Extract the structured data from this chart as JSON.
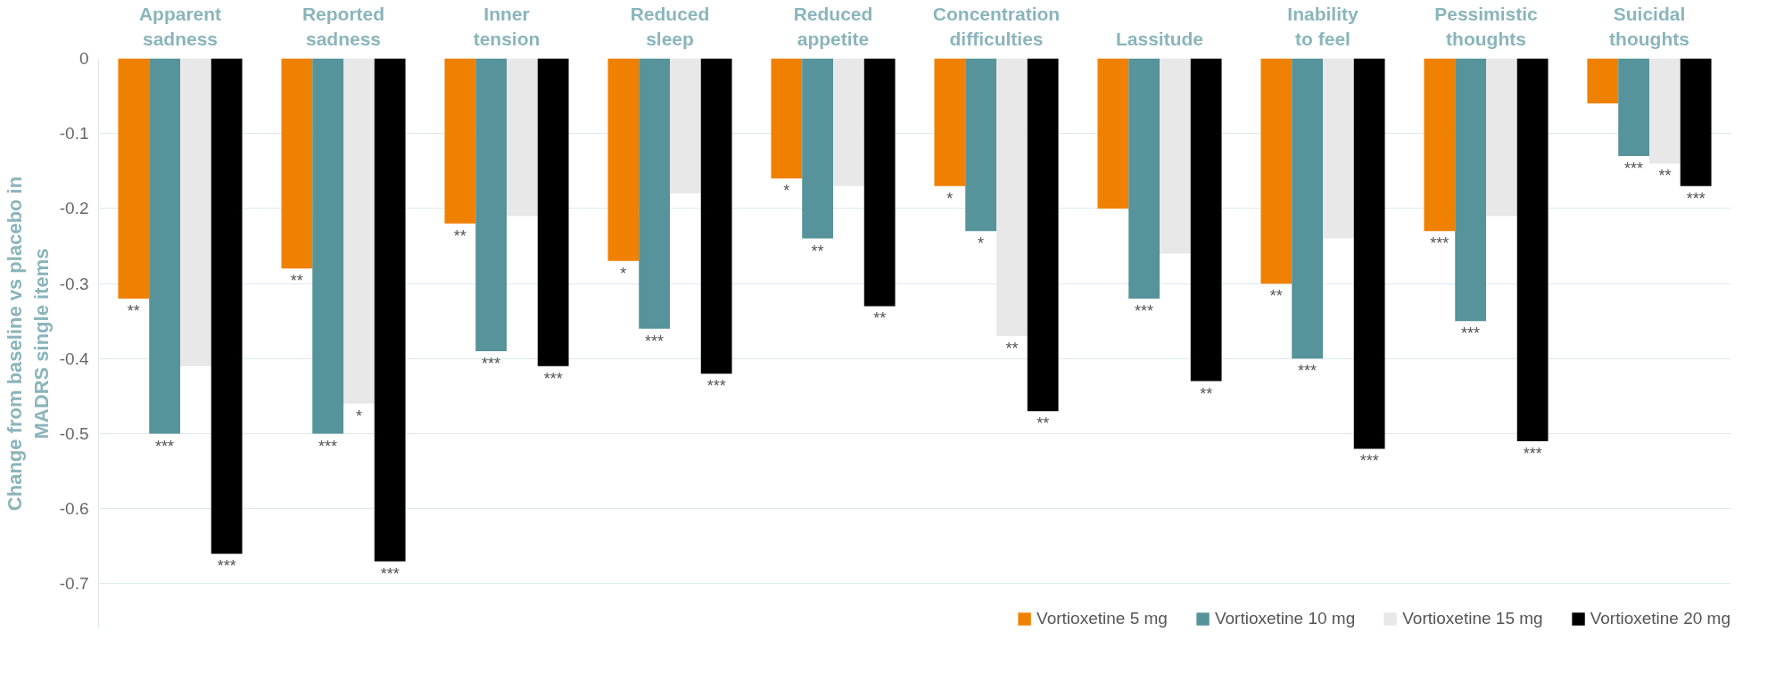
{
  "chart_data": {
    "type": "bar",
    "ylabel": "Change from baseline vs placebo in MADRS single items",
    "categories": [
      "Apparent sadness",
      "Reported sadness",
      "Inner tension",
      "Reduced sleep",
      "Reduced appetite",
      "Concentration difficulties",
      "Lassitude",
      "Inability to feel",
      "Pessimistic thoughts",
      "Suicidal thoughts"
    ],
    "series": [
      {
        "name": "Vortioxetine 5 mg",
        "color": "#f08000",
        "values": [
          -0.32,
          -0.28,
          -0.22,
          -0.27,
          -0.16,
          -0.17,
          -0.2,
          -0.3,
          -0.23,
          -0.06
        ],
        "value_labels": [
          "**",
          "**",
          "**",
          "*",
          "*",
          "*",
          null,
          "**",
          "***",
          null
        ]
      },
      {
        "name": "Vortioxetine 10 mg",
        "color": "#56939b",
        "values": [
          -0.5,
          -0.5,
          -0.39,
          -0.36,
          -0.24,
          -0.23,
          -0.32,
          -0.4,
          -0.35,
          -0.13
        ],
        "value_labels": [
          "***",
          "***",
          "***",
          "***",
          "**",
          "*",
          "***",
          "***",
          "***",
          "***"
        ]
      },
      {
        "name": "Vortioxetine 15 mg",
        "color": "#e8e8e8",
        "values": [
          -0.41,
          -0.46,
          -0.21,
          -0.18,
          -0.17,
          -0.37,
          -0.26,
          -0.24,
          -0.21,
          -0.14
        ],
        "value_labels": [
          null,
          "*",
          null,
          null,
          null,
          "**",
          null,
          null,
          null,
          "**"
        ]
      },
      {
        "name": "Vortioxetine 20 mg",
        "color": "#000000",
        "values": [
          -0.66,
          -0.67,
          -0.41,
          -0.42,
          -0.33,
          -0.47,
          -0.43,
          -0.52,
          -0.51,
          -0.17
        ],
        "value_labels": [
          "***",
          "***",
          "***",
          "***",
          "**",
          "**",
          "**",
          "***",
          "***",
          "***"
        ]
      }
    ],
    "ylim": [
      -0.76,
      0
    ],
    "yticks": [
      -0.7,
      -0.6,
      -0.5,
      -0.4,
      -0.3,
      -0.2,
      -0.1,
      0
    ],
    "grid": "y",
    "legend": "bottom right"
  }
}
